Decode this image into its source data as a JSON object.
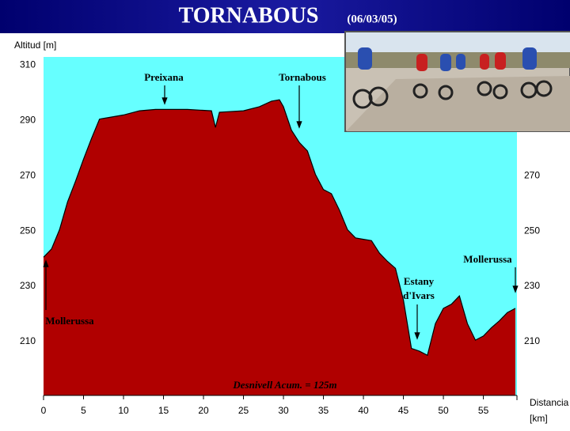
{
  "chart_data": {
    "type": "area",
    "title": "TORNABOUS",
    "subtitle": "(06/03/05)",
    "y_label": "Altitud [m]",
    "x_label_lines": [
      "Distancia",
      "[km]"
    ],
    "x": [
      0,
      1,
      2,
      3,
      4,
      5,
      6,
      7,
      8,
      10,
      12,
      14,
      16,
      18,
      21,
      21.5,
      22,
      25,
      27,
      28.5,
      29.5,
      30,
      31,
      32,
      33,
      34,
      35,
      36,
      37,
      38,
      39,
      40,
      41,
      42,
      43,
      44,
      45,
      46,
      47,
      48,
      49,
      50,
      51,
      52,
      53,
      54,
      55,
      56,
      57,
      58,
      59
    ],
    "values": [
      240.5,
      243.5,
      250.5,
      260.5,
      268,
      276,
      283.5,
      290.5,
      291,
      292,
      293.5,
      294,
      294,
      294,
      293.5,
      287.5,
      293,
      293.5,
      295,
      297,
      297.5,
      295,
      286.5,
      282,
      279,
      270.5,
      265,
      263.5,
      257.5,
      250.5,
      247.5,
      247,
      246.5,
      242,
      239,
      236.5,
      225,
      207.5,
      206.5,
      205,
      216.5,
      222,
      223.5,
      226.5,
      216.5,
      210.5,
      212,
      215,
      217.5,
      220.5,
      222
    ],
    "color": "#b00000",
    "background": "#66ffff",
    "xlim": [
      0,
      59.2
    ],
    "xticks": [
      0,
      5,
      10,
      15,
      20,
      25,
      30,
      35,
      40,
      45,
      50,
      55
    ],
    "ylim": [
      190.5,
      313
    ],
    "yticks": [
      210,
      230,
      250,
      270,
      290,
      310
    ],
    "y2lim": [
      190.5,
      313
    ],
    "y2ticks": [
      210,
      230,
      250,
      270
    ],
    "annotations": [
      "Preixana",
      "Tornabous",
      "Mollerussa",
      "Estany",
      "d'Ivars",
      "Mollerussa",
      "Desnivell Acum. = 125m"
    ]
  }
}
